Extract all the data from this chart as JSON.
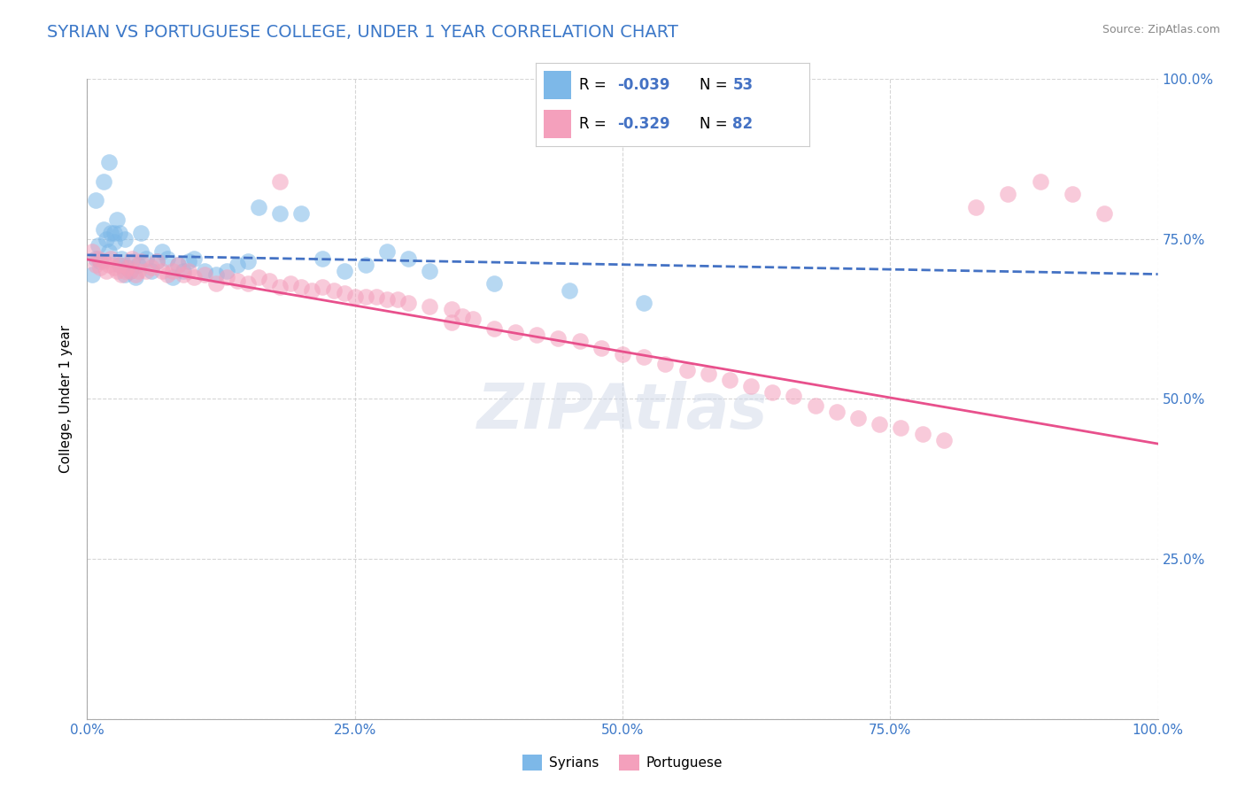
{
  "title": "SYRIAN VS PORTUGUESE COLLEGE, UNDER 1 YEAR CORRELATION CHART",
  "source_text": "Source: ZipAtlas.com",
  "ylabel": "College, Under 1 year",
  "title_color": "#3c78c8",
  "title_fontsize": 14,
  "background_color": "#ffffff",
  "grid_color": "#cccccc",
  "xlim": [
    0.0,
    1.0
  ],
  "ylim": [
    0.0,
    1.0
  ],
  "x_ticks": [
    0.0,
    0.25,
    0.5,
    0.75,
    1.0
  ],
  "x_tick_labels": [
    "0.0%",
    "25.0%",
    "50.0%",
    "75.0%",
    "100.0%"
  ],
  "y_ticks": [
    0.0,
    0.25,
    0.5,
    0.75,
    1.0
  ],
  "y_tick_labels_right": [
    "",
    "25.0%",
    "50.0%",
    "75.0%",
    "100.0%"
  ],
  "syrian_color": "#7db8e8",
  "portuguese_color": "#f4a0bc",
  "syrian_line_color": "#4472c4",
  "portuguese_line_color": "#e8508c",
  "syrian_R": -0.039,
  "syrian_N": 53,
  "portuguese_R": -0.329,
  "portuguese_N": 82,
  "legend_label_syrian": "Syrians",
  "legend_label_portuguese": "Portuguese",
  "watermark": "ZIPAtlas",
  "syrian_line_start_y": 0.725,
  "syrian_line_end_y": 0.695,
  "portuguese_line_start_y": 0.718,
  "portuguese_line_end_y": 0.43
}
